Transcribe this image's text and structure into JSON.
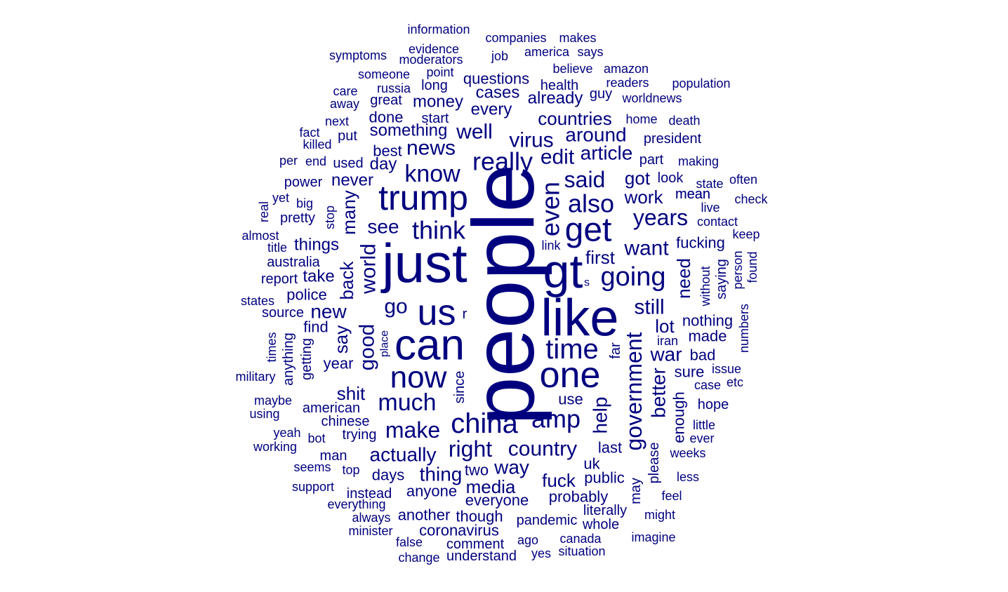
{
  "word_cloud": {
    "color": "#00007f",
    "words": [
      "people",
      "just",
      "like",
      "gt",
      "can",
      "us",
      "trump",
      "get",
      "one",
      "now",
      "china",
      "time",
      "going",
      "also",
      "think",
      "know",
      "really",
      "much",
      "make",
      "amp",
      "government",
      "right",
      "country",
      "even",
      "years",
      "want",
      "still",
      "said",
      "news",
      "virus",
      "edit",
      "article",
      "around",
      "countries",
      "well",
      "world",
      "good",
      "see",
      "go",
      "back",
      "many",
      "actually",
      "shit",
      "say",
      "thing",
      "way",
      "first",
      "need",
      "war",
      "lot",
      "better",
      "help",
      "fuck",
      "media",
      "new",
      "work",
      "got",
      "every",
      "money",
      "cases",
      "already",
      "questions",
      "something",
      "day",
      "best",
      "never",
      "fucking",
      "nothing",
      "made",
      "bad",
      "sure",
      "enough",
      "everyone",
      "probably",
      "public",
      "uk",
      "use",
      "last",
      "since",
      "two",
      "anyone",
      "days",
      "another",
      "though",
      "coronavirus",
      "pandemic",
      "literally",
      "whole",
      "may",
      "please",
      "far",
      "year",
      "find",
      "getting",
      "anything",
      "take",
      "police",
      "things",
      "australia",
      "report",
      "source",
      "states",
      "title",
      "almost",
      "real",
      "pretty",
      "big",
      "yet",
      "power",
      "per",
      "end",
      "used",
      "killed",
      "fact",
      "put",
      "next",
      "away",
      "care",
      "great",
      "done",
      "start",
      "russia",
      "long",
      "someone",
      "point",
      "moderators",
      "evidence",
      "symptoms",
      "information",
      "companies",
      "makes",
      "america",
      "says",
      "job",
      "believe",
      "amazon",
      "health",
      "readers",
      "guy",
      "worldnews",
      "population",
      "home",
      "death",
      "president",
      "part",
      "making",
      "look",
      "mean",
      "state",
      "often",
      "check",
      "live",
      "contact",
      "keep",
      "person",
      "found",
      "saying",
      "without",
      "link",
      "s",
      "r",
      "iran",
      "numbers",
      "issue",
      "etc",
      "case",
      "hope",
      "little",
      "ever",
      "weeks",
      "less",
      "feel",
      "might",
      "imagine",
      "stop",
      "place",
      "times",
      "military",
      "maybe",
      "using",
      "yeah",
      "bot",
      "working",
      "man",
      "seems",
      "top",
      "support",
      "instead",
      "everything",
      "always",
      "minister",
      "false",
      "change",
      "understand",
      "comment",
      "ago",
      "yes",
      "canada",
      "situation",
      "american",
      "chinese",
      "trying",
      "mean"
    ]
  }
}
